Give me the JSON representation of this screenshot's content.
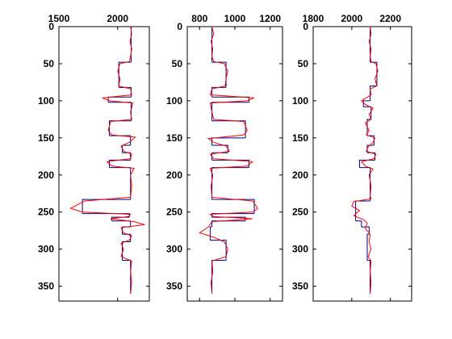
{
  "chart_data": [
    {
      "type": "line",
      "xlim": [
        1500,
        2270
      ],
      "xticks": [
        1500,
        2000
      ],
      "ylim": [
        0,
        370
      ],
      "yticks": [
        0,
        50,
        100,
        150,
        200,
        250,
        300,
        350
      ],
      "y_reversed": true,
      "series": [
        {
          "color": "#000080",
          "step": true,
          "depth": [
            0,
            48,
            82,
            95,
            102,
            127,
            147,
            160,
            170,
            180,
            190,
            233,
            252,
            257,
            262,
            270,
            280,
            290,
            315,
            360
          ],
          "values": [
            2115,
            2010,
            2115,
            1920,
            2115,
            1930,
            2110,
            2040,
            2110,
            1930,
            2110,
            1700,
            2100,
            1950,
            2110,
            2040,
            2110,
            2040,
            2110
          ]
        },
        {
          "color": "#ff0000",
          "depth": [
            0,
            10,
            20,
            30,
            40,
            47,
            50,
            60,
            70,
            80,
            84,
            92,
            96,
            100,
            103,
            115,
            125,
            128,
            140,
            146,
            149,
            156,
            161,
            168,
            172,
            178,
            182,
            188,
            191,
            200,
            215,
            230,
            235,
            245,
            250,
            253,
            256,
            259,
            263,
            267,
            271,
            278,
            282,
            288,
            292,
            300,
            310,
            316,
            330,
            345,
            360
          ],
          "values": [
            2110,
            2120,
            2105,
            2120,
            2110,
            2100,
            2020,
            2000,
            2020,
            2010,
            2110,
            2120,
            1870,
            1930,
            2130,
            2110,
            2120,
            1940,
            1920,
            1950,
            2150,
            2100,
            2030,
            2050,
            2120,
            2110,
            1910,
            1950,
            2140,
            2110,
            2120,
            2110,
            1720,
            1600,
            1700,
            2110,
            2090,
            1940,
            2140,
            2230,
            2030,
            2050,
            2120,
            2100,
            2030,
            2050,
            2030,
            2120,
            2110,
            2120,
            2110
          ]
        }
      ]
    },
    {
      "type": "line",
      "xlim": [
        730,
        1270
      ],
      "xticks": [
        800,
        1000,
        1200
      ],
      "ylim": [
        0,
        370
      ],
      "yticks": [
        0,
        50,
        100,
        150,
        200,
        250,
        300,
        350
      ],
      "y_reversed": true,
      "series": [
        {
          "color": "#000080",
          "step": true,
          "depth": [
            0,
            48,
            82,
            95,
            102,
            127,
            150,
            160,
            170,
            180,
            190,
            233,
            252,
            257,
            262,
            270,
            288,
            315,
            360
          ],
          "values": [
            870,
            950,
            870,
            1080,
            870,
            1060,
            870,
            960,
            870,
            1080,
            870,
            1110,
            870,
            1060,
            870,
            860,
            950,
            870
          ]
        },
        {
          "color": "#ff0000",
          "depth": [
            0,
            10,
            20,
            30,
            40,
            47,
            50,
            60,
            70,
            80,
            84,
            92,
            96,
            100,
            103,
            115,
            125,
            128,
            140,
            146,
            151,
            156,
            161,
            168,
            172,
            178,
            182,
            188,
            191,
            200,
            215,
            230,
            235,
            245,
            250,
            253,
            256,
            259,
            263,
            270,
            278,
            284,
            290,
            300,
            310,
            316,
            330,
            345,
            360
          ],
          "values": [
            870,
            880,
            865,
            875,
            870,
            880,
            940,
            960,
            950,
            945,
            870,
            860,
            1110,
            1070,
            860,
            870,
            880,
            1050,
            1070,
            1050,
            850,
            880,
            950,
            970,
            860,
            880,
            1100,
            1070,
            860,
            875,
            865,
            870,
            1100,
            1130,
            1100,
            860,
            880,
            1100,
            870,
            850,
            800,
            880,
            940,
            960,
            950,
            870,
            875,
            865,
            870
          ]
        }
      ]
    },
    {
      "type": "line",
      "xlim": [
        1800,
        2310
      ],
      "xticks": [
        1800,
        2000,
        2200
      ],
      "ylim": [
        0,
        370
      ],
      "yticks": [
        0,
        50,
        100,
        150,
        200,
        250,
        300,
        350
      ],
      "y_reversed": true,
      "series": [
        {
          "color": "#000080",
          "step": true,
          "depth": [
            0,
            48,
            80,
            100,
            108,
            125,
            147,
            160,
            170,
            180,
            190,
            235,
            262,
            270,
            280,
            315,
            360
          ],
          "values": [
            2095,
            2130,
            2095,
            2060,
            2100,
            2080,
            2115,
            2080,
            2120,
            2040,
            2095,
            2020,
            2050,
            2090,
            2080,
            2095
          ]
        },
        {
          "color": "#ff0000",
          "depth": [
            0,
            10,
            20,
            30,
            40,
            47,
            50,
            60,
            70,
            80,
            84,
            92,
            100,
            105,
            110,
            118,
            125,
            130,
            140,
            146,
            150,
            156,
            162,
            168,
            172,
            178,
            182,
            188,
            192,
            200,
            215,
            228,
            232,
            236,
            242,
            248,
            255,
            260,
            265,
            272,
            280,
            290,
            300,
            310,
            316,
            330,
            345,
            360
          ],
          "values": [
            2095,
            2100,
            2090,
            2100,
            2095,
            2100,
            2125,
            2135,
            2120,
            2130,
            2095,
            2100,
            2050,
            2070,
            2110,
            2090,
            2100,
            2070,
            2090,
            2075,
            2120,
            2110,
            2085,
            2075,
            2125,
            2115,
            2050,
            2070,
            2110,
            2090,
            2100,
            2095,
            2100,
            2010,
            2000,
            2040,
            2010,
            2060,
            2080,
            2070,
            2095,
            2090,
            2100,
            2085,
            2100,
            2095,
            2100,
            2095
          ]
        }
      ]
    }
  ]
}
